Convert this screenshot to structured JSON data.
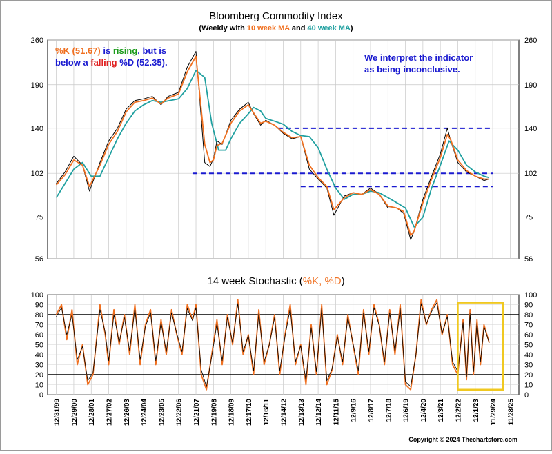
{
  "chart_data": [
    {
      "type": "line",
      "title": "Bloomberg Commodity Index",
      "subtitle_parts": [
        {
          "text": "(Weekly with ",
          "color": "#000000"
        },
        {
          "text": "10 week MA",
          "color": "#f07020"
        },
        {
          "text": " and ",
          "color": "#000000"
        },
        {
          "text": "40 week MA",
          "color": "#20a0a0"
        },
        {
          "text": ")",
          "color": "#000000"
        }
      ],
      "scale": "log",
      "ylim": [
        56,
        260
      ],
      "yticks": [
        56,
        75,
        102,
        140,
        190,
        260
      ],
      "xlim": [
        1999.5,
        2026.5
      ],
      "grid": true,
      "annotation_left": [
        [
          {
            "text": "%K (51.67)",
            "color": "#f07020"
          },
          {
            "text": " is ",
            "color": "#1a1ad0"
          },
          {
            "text": "rising",
            "color": "#1a9a1a"
          },
          {
            "text": ", but is",
            "color": "#1a1ad0"
          }
        ],
        [
          {
            "text": "below a ",
            "color": "#1a1ad0"
          },
          {
            "text": "falling",
            "color": "#e02020"
          },
          {
            "text": " %D (52.35).",
            "color": "#1a1ad0"
          }
        ]
      ],
      "annotation_right": [
        "We interpret the indicator",
        "as being inconclusive."
      ],
      "annotation_right_color": "#1a1ad0",
      "reference_lines": [
        {
          "y": 140,
          "x_from": 2012.7,
          "x_to": 2025.0
        },
        {
          "y": 102,
          "x_from": 2007.8,
          "x_to": 2025.0
        },
        {
          "y": 93,
          "x_from": 2014.0,
          "x_to": 2025.0
        }
      ],
      "reference_color": "#1a1ad0",
      "series": [
        {
          "name": "Price",
          "color": "#000000",
          "x": [
            2000.0,
            2000.5,
            2001.0,
            2001.5,
            2001.9,
            2002.5,
            2003.0,
            2003.5,
            2004.0,
            2004.5,
            2005.0,
            2005.5,
            2006.0,
            2006.4,
            2007.0,
            2007.5,
            2008.0,
            2008.5,
            2008.8,
            2009.0,
            2009.2,
            2009.5,
            2010.0,
            2010.5,
            2011.0,
            2011.3,
            2011.7,
            2012.0,
            2012.5,
            2013.0,
            2013.5,
            2014.0,
            2014.5,
            2015.0,
            2015.5,
            2015.9,
            2016.5,
            2017.0,
            2017.5,
            2018.0,
            2018.5,
            2019.0,
            2019.5,
            2019.9,
            2020.3,
            2020.5,
            2021.0,
            2021.5,
            2022.0,
            2022.4,
            2022.6,
            2023.0,
            2023.5,
            2024.0,
            2024.5,
            2024.8
          ],
          "values": [
            95,
            103,
            115,
            108,
            90,
            110,
            128,
            140,
            160,
            170,
            172,
            175,
            165,
            175,
            180,
            215,
            240,
            110,
            107,
            113,
            128,
            125,
            148,
            160,
            168,
            155,
            143,
            148,
            143,
            135,
            130,
            132,
            105,
            98,
            92,
            76,
            87,
            89,
            88,
            92,
            88,
            80,
            80,
            77,
            64,
            68,
            85,
            100,
            117,
            140,
            128,
            110,
            103,
            100,
            97,
            98
          ]
        },
        {
          "name": "10 week MA",
          "color": "#f07020",
          "x": [
            2000.0,
            2000.5,
            2001.0,
            2001.5,
            2001.9,
            2002.5,
            2003.0,
            2003.5,
            2004.0,
            2004.5,
            2005.0,
            2005.5,
            2006.0,
            2006.4,
            2007.0,
            2007.5,
            2008.0,
            2008.5,
            2008.8,
            2009.0,
            2009.2,
            2009.5,
            2010.0,
            2010.5,
            2011.0,
            2011.3,
            2011.7,
            2012.0,
            2012.5,
            2013.0,
            2013.5,
            2014.0,
            2014.5,
            2015.0,
            2015.5,
            2015.9,
            2016.5,
            2017.0,
            2017.5,
            2018.0,
            2018.5,
            2019.0,
            2019.5,
            2019.9,
            2020.3,
            2020.5,
            2021.0,
            2021.5,
            2022.0,
            2022.4,
            2022.6,
            2023.0,
            2023.5,
            2024.0,
            2024.5,
            2024.8
          ],
          "values": [
            94,
            101,
            112,
            108,
            93,
            108,
            125,
            137,
            157,
            168,
            170,
            173,
            166,
            173,
            178,
            208,
            232,
            125,
            110,
            112,
            124,
            126,
            145,
            158,
            165,
            156,
            145,
            147,
            143,
            136,
            131,
            132,
            108,
            99,
            93,
            79,
            86,
            89,
            88,
            91,
            88,
            81,
            80,
            78,
            66,
            68,
            83,
            98,
            114,
            134,
            129,
            112,
            104,
            100,
            98,
            98
          ]
        },
        {
          "name": "40 week MA",
          "color": "#20a0a0",
          "x": [
            2000.0,
            2000.5,
            2001.0,
            2001.5,
            2002.0,
            2002.5,
            2003.0,
            2003.5,
            2004.0,
            2004.5,
            2005.0,
            2005.5,
            2006.0,
            2006.5,
            2007.0,
            2007.5,
            2008.0,
            2008.5,
            2008.9,
            2009.3,
            2009.7,
            2010.0,
            2010.5,
            2011.0,
            2011.3,
            2011.7,
            2012.0,
            2012.5,
            2013.0,
            2013.5,
            2014.0,
            2014.5,
            2015.0,
            2015.5,
            2016.0,
            2016.5,
            2017.0,
            2017.5,
            2018.0,
            2018.5,
            2019.0,
            2019.5,
            2020.0,
            2020.5,
            2021.0,
            2021.5,
            2022.0,
            2022.5,
            2023.0,
            2023.5,
            2024.0,
            2024.5,
            2024.8
          ],
          "values": [
            86,
            95,
            105,
            110,
            100,
            100,
            114,
            130,
            145,
            158,
            165,
            170,
            168,
            170,
            172,
            185,
            210,
            200,
            145,
            120,
            120,
            130,
            145,
            155,
            162,
            158,
            150,
            147,
            144,
            137,
            133,
            132,
            122,
            105,
            92,
            85,
            88,
            88,
            90,
            89,
            86,
            83,
            80,
            70,
            75,
            92,
            108,
            128,
            120,
            108,
            103,
            100,
            99
          ]
        }
      ]
    },
    {
      "type": "line",
      "title_parts": [
        {
          "text": "14 week Stochastic (",
          "color": "#000000"
        },
        {
          "text": "%K, %D",
          "color": "#f07020"
        },
        {
          "text": ")",
          "color": "#000000"
        }
      ],
      "ylim": [
        0,
        100
      ],
      "yticks": [
        0,
        10,
        20,
        30,
        40,
        50,
        60,
        70,
        80,
        90,
        100
      ],
      "reference_lines_y": [
        20,
        80
      ],
      "highlight_box": {
        "x_from": 2023.0,
        "x_to": 2025.6,
        "y_from": 5,
        "y_to": 92,
        "color": "#f0c820"
      },
      "x_tick_labels": [
        "12/31/99",
        "12/29/00",
        "12/28/01",
        "12/27/02",
        "12/26/03",
        "12/24/04",
        "12/23/05",
        "12/22/06",
        "12/21/07",
        "12/19/08",
        "12/18/09",
        "12/17/10",
        "12/16/11",
        "12/14/12",
        "12/13/13",
        "12/12/14",
        "12/11/15",
        "12/9/16",
        "12/8/17",
        "12/7/18",
        "12/6/19",
        "12/4/20",
        "12/3/21",
        "12/2/22",
        "12/1/23",
        "11/29/24",
        "11/28/25"
      ],
      "series": [
        {
          "name": "%K",
          "color": "#f07020",
          "x": [
            2000.0,
            2000.3,
            2000.6,
            2000.9,
            2001.2,
            2001.5,
            2001.8,
            2002.1,
            2002.5,
            2002.8,
            2003.0,
            2003.3,
            2003.6,
            2003.9,
            2004.2,
            2004.5,
            2004.8,
            2005.1,
            2005.4,
            2005.7,
            2006.0,
            2006.3,
            2006.6,
            2006.9,
            2007.2,
            2007.5,
            2007.8,
            2008.0,
            2008.3,
            2008.6,
            2008.9,
            2009.2,
            2009.5,
            2009.8,
            2010.1,
            2010.4,
            2010.7,
            2011.0,
            2011.3,
            2011.6,
            2011.9,
            2012.2,
            2012.5,
            2012.8,
            2013.1,
            2013.4,
            2013.7,
            2014.0,
            2014.3,
            2014.6,
            2014.9,
            2015.2,
            2015.5,
            2015.8,
            2016.1,
            2016.4,
            2016.7,
            2017.0,
            2017.3,
            2017.6,
            2017.9,
            2018.2,
            2018.5,
            2018.8,
            2019.1,
            2019.4,
            2019.7,
            2020.0,
            2020.3,
            2020.6,
            2020.9,
            2021.2,
            2021.5,
            2021.8,
            2022.1,
            2022.4,
            2022.7,
            2023.0,
            2023.3,
            2023.5,
            2023.7,
            2023.9,
            2024.1,
            2024.3,
            2024.5,
            2024.8
          ],
          "values": [
            80,
            90,
            55,
            85,
            30,
            50,
            10,
            20,
            90,
            60,
            30,
            85,
            50,
            80,
            40,
            90,
            30,
            70,
            85,
            30,
            75,
            40,
            85,
            60,
            40,
            90,
            75,
            90,
            20,
            5,
            40,
            75,
            30,
            80,
            50,
            95,
            40,
            60,
            20,
            85,
            30,
            50,
            80,
            20,
            60,
            90,
            30,
            50,
            10,
            70,
            20,
            90,
            10,
            25,
            60,
            30,
            80,
            50,
            20,
            85,
            40,
            90,
            70,
            30,
            85,
            40,
            90,
            10,
            5,
            40,
            95,
            70,
            85,
            95,
            60,
            80,
            30,
            20,
            75,
            15,
            85,
            20,
            75,
            30,
            70,
            52
          ]
        },
        {
          "name": "%D",
          "color": "#000000",
          "x": [
            2000.0,
            2000.3,
            2000.6,
            2000.9,
            2001.2,
            2001.5,
            2001.8,
            2002.1,
            2002.5,
            2002.8,
            2003.0,
            2003.3,
            2003.6,
            2003.9,
            2004.2,
            2004.5,
            2004.8,
            2005.1,
            2005.4,
            2005.7,
            2006.0,
            2006.3,
            2006.6,
            2006.9,
            2007.2,
            2007.5,
            2007.8,
            2008.0,
            2008.3,
            2008.6,
            2008.9,
            2009.2,
            2009.5,
            2009.8,
            2010.1,
            2010.4,
            2010.7,
            2011.0,
            2011.3,
            2011.6,
            2011.9,
            2012.2,
            2012.5,
            2012.8,
            2013.1,
            2013.4,
            2013.7,
            2014.0,
            2014.3,
            2014.6,
            2014.9,
            2015.2,
            2015.5,
            2015.8,
            2016.1,
            2016.4,
            2016.7,
            2017.0,
            2017.3,
            2017.6,
            2017.9,
            2018.2,
            2018.5,
            2018.8,
            2019.1,
            2019.4,
            2019.7,
            2020.0,
            2020.3,
            2020.6,
            2020.9,
            2021.2,
            2021.5,
            2021.8,
            2022.1,
            2022.4,
            2022.7,
            2023.0,
            2023.3,
            2023.5,
            2023.7,
            2023.9,
            2024.1,
            2024.3,
            2024.5,
            2024.8
          ],
          "values": [
            78,
            87,
            60,
            80,
            35,
            48,
            14,
            22,
            85,
            62,
            34,
            80,
            52,
            77,
            44,
            86,
            35,
            68,
            82,
            34,
            72,
            43,
            82,
            61,
            43,
            86,
            74,
            87,
            25,
            8,
            38,
            71,
            34,
            77,
            52,
            91,
            43,
            59,
            24,
            81,
            33,
            50,
            77,
            24,
            58,
            86,
            33,
            49,
            14,
            67,
            23,
            86,
            14,
            26,
            58,
            33,
            77,
            51,
            24,
            82,
            43,
            87,
            69,
            33,
            82,
            43,
            86,
            13,
            8,
            40,
            91,
            71,
            83,
            92,
            61,
            78,
            33,
            23,
            72,
            18,
            81,
            23,
            72,
            33,
            68,
            52
          ]
        }
      ]
    }
  ],
  "copyright": "Copyright © 2024 Thechartstore.com"
}
